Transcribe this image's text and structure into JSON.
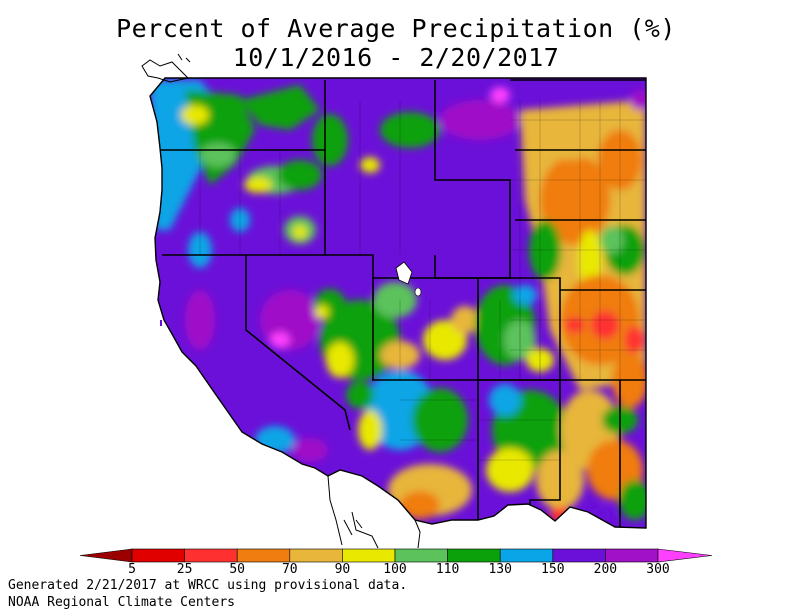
{
  "title": {
    "line1": "Percent of Average Precipitation (%)",
    "line2": "10/1/2016 - 2/20/2017"
  },
  "legend": {
    "labels": [
      "5",
      "25",
      "50",
      "70",
      "90",
      "100",
      "110",
      "130",
      "150",
      "200",
      "300"
    ],
    "colors": [
      "#9b0000",
      "#e00000",
      "#ff3030",
      "#f07d10",
      "#e7b63a",
      "#e8e800",
      "#5cc25c",
      "#0aa10a",
      "#0aa5e6",
      "#6b10d8",
      "#a011c8",
      "#ff40ff"
    ]
  },
  "colors": {
    "background": "#ffffff",
    "water": "#ffffff",
    "boundaries": "#000000"
  },
  "footer": {
    "line1": "Generated 2/21/2017 at WRCC using provisional data.",
    "line2": "NOAA Regional Climate Centers"
  }
}
